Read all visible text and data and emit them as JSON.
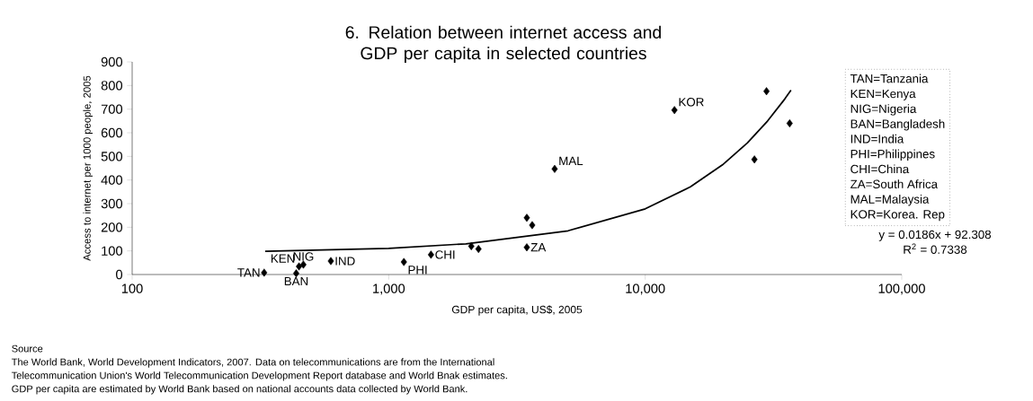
{
  "chart_data": {
    "type": "scatter",
    "title": "6. Relation between internet access and GDP per capita in selected countries",
    "xlabel": "GDP per capita, US$, 2005",
    "ylabel": "Access to internet per 1000 people, 2005",
    "log": "x",
    "marker": "diamond",
    "xlim": [
      100,
      100000
    ],
    "xticks": [
      {
        "value": 100,
        "label": "100"
      },
      {
        "value": 1000,
        "label": "1,000"
      },
      {
        "value": 10000,
        "label": "10,000"
      },
      {
        "value": 100000,
        "label": "100,000"
      }
    ],
    "ylim": [
      0,
      900
    ],
    "yticks": [
      0,
      100,
      200,
      300,
      400,
      500,
      600,
      700,
      800,
      900
    ],
    "series": [
      {
        "color": "#000000",
        "x": [
          327,
          436,
          447,
          465,
          595,
          1146,
          1462,
          2099,
          2239,
          3455,
          3455,
          3626,
          4436,
          13000,
          26650,
          29700,
          36560
        ],
        "values": [
          8,
          5,
          34,
          42,
          57,
          53,
          84,
          120,
          108,
          115,
          240,
          209,
          447,
          696,
          487,
          776,
          640
        ]
      },
      {
        "type": "line",
        "color": "#000000",
        "marker": "none",
        "line_style": "solid",
        "x": [
          330,
          1000,
          2000,
          5000,
          10000,
          15000,
          20000,
          25000,
          30000,
          35000,
          37000
        ],
        "values": [
          98,
          111,
          130,
          185,
          278,
          371,
          464,
          557,
          650,
          743,
          780
        ]
      }
    ],
    "annotations": [
      {
        "text": "TAN",
        "x": 327,
        "y": 8
      },
      {
        "text": "BAN",
        "x": 436,
        "y": 5
      },
      {
        "text": "KEN",
        "x": 447,
        "y": 34
      },
      {
        "text": "NIG",
        "x": 465,
        "y": 42
      },
      {
        "text": "IND",
        "x": 595,
        "y": 57
      },
      {
        "text": "PHI",
        "x": 1146,
        "y": 53
      },
      {
        "text": "CHI",
        "x": 1462,
        "y": 84
      },
      {
        "text": "ZA",
        "x": 3455,
        "y": 115
      },
      {
        "text": "MAL",
        "x": 4436,
        "y": 447
      },
      {
        "text": "KOR",
        "x": 13000,
        "y": 696
      },
      "TAN=Tanzania",
      "KEN=Kenya",
      "NIG=Nigeria",
      "BAN=Bangladesh",
      "IND=India",
      "PHI=Philippines",
      "CHI=China",
      "ZA=South Africa",
      "MAL=Malaysia",
      "KOR=Korea. Rep",
      "y = 0.0186x + 92.308",
      "R$^{2}$ = 0.7338",
      "Source",
      "The World Bank, World Development Indicators, 2007. Data on telecommunications are from the International",
      "Telecommunication Union's World Telecommunication Development Report database and World Bnak estimates.",
      "GDP per capita are estimated by World Bank based on national accounts data collected by World Bank."
    ]
  }
}
